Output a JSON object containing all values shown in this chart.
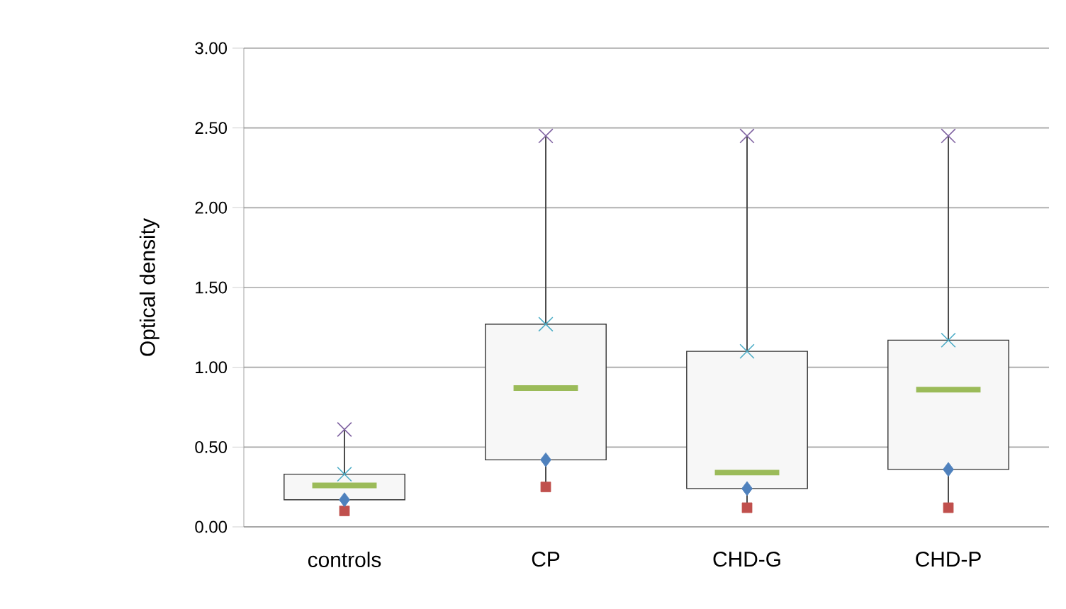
{
  "chart_data": {
    "type": "box",
    "ylabel": "Optical density",
    "categories": [
      "controls",
      "CP",
      "CHD-G",
      "CHD-P"
    ],
    "boxes": [
      {
        "low": 0.1,
        "q1": 0.17,
        "median": 0.26,
        "q3": 0.33,
        "high": 0.61
      },
      {
        "low": 0.25,
        "q1": 0.42,
        "median": 0.87,
        "q3": 1.27,
        "high": 2.45
      },
      {
        "low": 0.12,
        "q1": 0.24,
        "median": 0.34,
        "q3": 1.1,
        "high": 2.45
      },
      {
        "low": 0.12,
        "q1": 0.36,
        "median": 0.86,
        "q3": 1.17,
        "high": 2.45
      }
    ],
    "series": [
      {
        "type": "scatter",
        "marker": "square",
        "color": "#c0504d",
        "x": [
          "controls",
          "CP",
          "CHD-G",
          "CHD-P"
        ],
        "values": [
          0.1,
          0.25,
          0.12,
          0.12
        ]
      },
      {
        "type": "scatter",
        "marker": "diamond",
        "color": "#4f81bd",
        "x": [
          "controls",
          "CP",
          "CHD-G",
          "CHD-P"
        ],
        "values": [
          0.17,
          0.42,
          0.24,
          0.36
        ]
      },
      {
        "type": "scatter",
        "marker": "cross",
        "color": "#4bacc6",
        "x": [
          "controls",
          "CP",
          "CHD-G",
          "CHD-P"
        ],
        "values": [
          0.33,
          1.27,
          1.1,
          1.17
        ]
      },
      {
        "type": "scatter",
        "marker": "cross",
        "color": "#8064a2",
        "x": [
          "controls",
          "CP",
          "CHD-G",
          "CHD-P"
        ],
        "values": [
          0.61,
          2.45,
          2.45,
          2.45
        ]
      }
    ],
    "ylim": [
      0,
      3
    ],
    "yticks": [
      {
        "value": 0,
        "label": "0.00"
      },
      {
        "value": 0.5,
        "label": "0.50"
      },
      {
        "value": 1,
        "label": "1.00"
      },
      {
        "value": 1.5,
        "label": "1.50"
      },
      {
        "value": 2,
        "label": "2.00"
      },
      {
        "value": 2.5,
        "label": "2.50"
      },
      {
        "value": 3,
        "label": "3.00"
      }
    ],
    "grid": "y"
  }
}
